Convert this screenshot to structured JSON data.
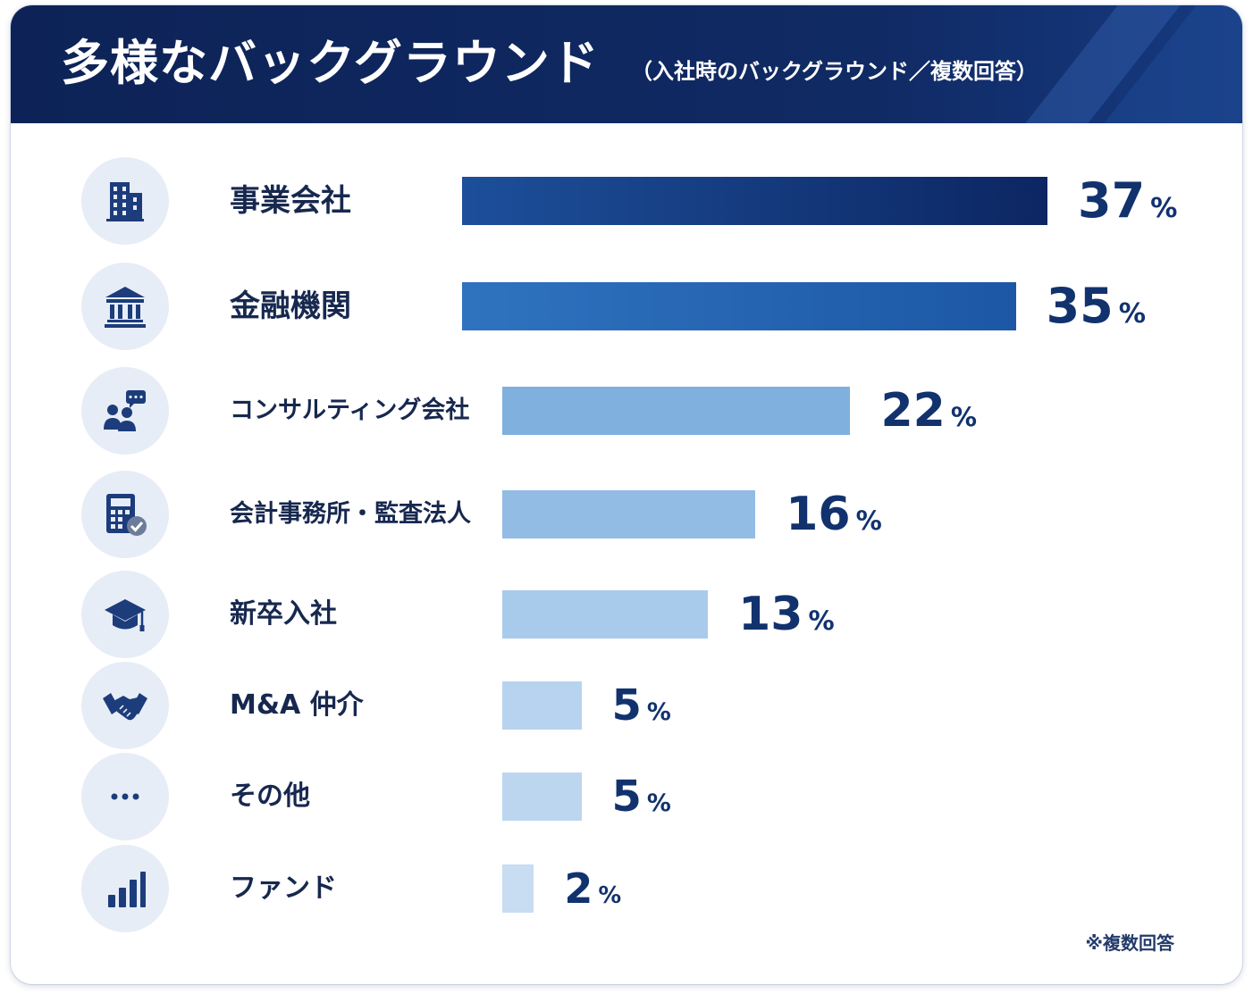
{
  "header": {
    "title": "多様なバックグラウンド",
    "subtitle": "（入社時のバックグラウンド／複数回答）"
  },
  "footnote": "※複数回答",
  "colors": {
    "header_bg": "#0d2357",
    "bar_darkest": "#0e2a63",
    "bar_lightest": "#c5d9f0",
    "value_text": "#12326e"
  },
  "chart_data": {
    "type": "bar",
    "orientation": "horizontal",
    "categories": [
      "事業会社",
      "金融機関",
      "コンサルティング会社",
      "会計事務所・監査法人",
      "新卒入社",
      "M&A 仲介",
      "その他",
      "ファンド"
    ],
    "icons": [
      "office-building-icon",
      "bank-icon",
      "consulting-people-icon",
      "calculator-check-icon",
      "graduation-cap-icon",
      "handshake-icon",
      "more-dots-icon",
      "bar-chart-icon"
    ],
    "values": [
      37,
      35,
      22,
      16,
      13,
      5,
      5,
      2
    ],
    "unit": "%",
    "grid": false,
    "legend": "none"
  }
}
